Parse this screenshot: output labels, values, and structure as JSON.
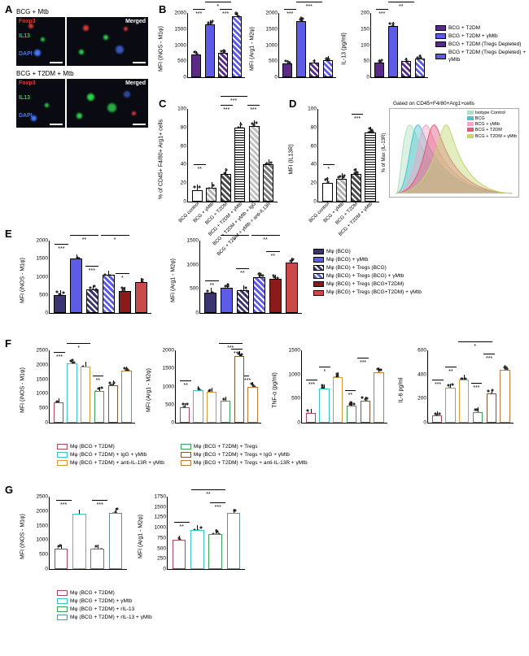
{
  "panelA": {
    "title1": "BCG + Mtb",
    "title2": "BCG + T2DM + Mtb",
    "labels": {
      "foxp3": "Foxp3",
      "il13": "IL13",
      "dapi": "DAPI",
      "merged": "Merged"
    },
    "colors": {
      "foxp3": "#d83a3a",
      "il13": "#2bd24a",
      "dapi": "#4876ff",
      "bg": "#0a0a12"
    }
  },
  "legendB": {
    "items": [
      {
        "label": "BCG + T2DM",
        "fill": "#5b2a86",
        "pattern": "none"
      },
      {
        "label": "BCG + T2DM + γMtb",
        "fill": "#5e5ce6",
        "pattern": "none"
      },
      {
        "label": "BCG + T2DM (Tregs Depleted)",
        "fill": "#5b2a86",
        "pattern": "hatch"
      },
      {
        "label": "BCG + T2DM (Tregs Depleted) + γMtb",
        "fill": "#5e5ce6",
        "pattern": "hatch"
      }
    ]
  },
  "chartB1": {
    "ylabel": "MFI (iNOS - M1φ)",
    "ymax": 2000,
    "ystep": 500,
    "bars": [
      {
        "v": 700,
        "fill": "#5b2a86",
        "hatch": false
      },
      {
        "v": 1650,
        "fill": "#5e5ce6",
        "hatch": false
      },
      {
        "v": 750,
        "fill": "#5b2a86",
        "hatch": true
      },
      {
        "v": 1900,
        "fill": "#5e5ce6",
        "hatch": true
      }
    ],
    "sig": [
      [
        "***",
        "***",
        "*"
      ]
    ]
  },
  "chartB2": {
    "ylabel": "MFI (Arg1 - M2φ)",
    "ymax": 2000,
    "ystep": 500,
    "bars": [
      {
        "v": 420,
        "fill": "#5b2a86",
        "hatch": false
      },
      {
        "v": 1750,
        "fill": "#5e5ce6",
        "hatch": false
      },
      {
        "v": 450,
        "fill": "#5b2a86",
        "hatch": true
      },
      {
        "v": 530,
        "fill": "#5e5ce6",
        "hatch": true
      }
    ]
  },
  "chartB3": {
    "ylabel": "IL-13 (pg/ml)",
    "ymax": 200,
    "ystep": 50,
    "bars": [
      {
        "v": 45,
        "fill": "#5b2a86",
        "hatch": false
      },
      {
        "v": 160,
        "fill": "#5e5ce6",
        "hatch": false
      },
      {
        "v": 50,
        "fill": "#5b2a86",
        "hatch": true
      },
      {
        "v": 58,
        "fill": "#5e5ce6",
        "hatch": true
      }
    ]
  },
  "chartC": {
    "ylabel": "% of CD45+ F4/80+\nArg1+ cells",
    "ymax": 100,
    "ystep": 20,
    "bars": [
      {
        "v": 12,
        "fill": "#ffffff",
        "hatch": false
      },
      {
        "v": 15,
        "fill": "#b0b0b0",
        "hatch": true
      },
      {
        "v": 30,
        "fill": "#4a4a4a",
        "hatch": true
      },
      {
        "v": 80,
        "fill": "#ffffff",
        "hatch": true,
        "hatchStyle": "horiz"
      },
      {
        "v": 82,
        "fill": "#c0c0c0",
        "hatch": true
      },
      {
        "v": 40,
        "fill": "#7a7a7a",
        "hatch": true
      }
    ],
    "xlabels": [
      "BCG control",
      "BCG + γMtb",
      "BCG + T2DM",
      "BCG + T2DM + γMtb",
      "BCG + T2DM + γMtb + IgG",
      "BCG + T2DM + γMtb + anti-IL13R"
    ]
  },
  "chartD": {
    "ylabel": "MFI (IL13R)",
    "ymax": 100,
    "ystep": 20,
    "bars": [
      {
        "v": 20,
        "fill": "#ffffff",
        "hatch": false
      },
      {
        "v": 25,
        "fill": "#b0b0b0",
        "hatch": true
      },
      {
        "v": 30,
        "fill": "#4a4a4a",
        "hatch": true
      },
      {
        "v": 75,
        "fill": "#ffffff",
        "hatch": true,
        "hatchStyle": "horiz"
      }
    ],
    "xlabels": [
      "BCG control",
      "BCG + γMtb",
      "BCG + T2DM",
      "BCG + T2DM + γMtb"
    ]
  },
  "histoD": {
    "gateTitle": "Gated on CD45+F4/80+Arg1+cells",
    "ylabel": "% of Max (IL-13R)",
    "legend": [
      "Isotype Control",
      "BCG",
      "BCG + γMtb",
      "BCG + T2DM",
      "BCG + T2DM + γMtb"
    ],
    "colors": [
      "#b0e0c4",
      "#4bc3d0",
      "#f5a3c7",
      "#e35a7a",
      "#c0d870"
    ]
  },
  "legendE": {
    "items": [
      {
        "label": "Mφ (BCG)",
        "fill": "#3a3470"
      },
      {
        "label": "Mφ (BCG) + γMtb",
        "fill": "#5e5ce6"
      },
      {
        "label": "Mφ (BCG) + Tregs (BCG)",
        "fill": "#3a3470",
        "hatch": true
      },
      {
        "label": "Mφ (BCG) + Tregs (BCG) + γMtb",
        "fill": "#5e5ce6",
        "hatch": true
      },
      {
        "label": "Mφ (BCG) + Tregs (BCG+T2DM)",
        "fill": "#8b1a1a"
      },
      {
        "label": "Mφ (BCG) + Tregs (BCG+T2DM) + γMtb",
        "fill": "#c94a4a"
      }
    ]
  },
  "chartE1": {
    "ylabel": "MFI (iNOS - M1φ)",
    "ymax": 2000,
    "ystep": 500,
    "bars": [
      {
        "v": 500,
        "fill": "#3a3470"
      },
      {
        "v": 1500,
        "fill": "#5e5ce6"
      },
      {
        "v": 650,
        "fill": "#3a3470",
        "hatch": true
      },
      {
        "v": 1050,
        "fill": "#5e5ce6",
        "hatch": true
      },
      {
        "v": 600,
        "fill": "#8b1a1a"
      },
      {
        "v": 850,
        "fill": "#c94a4a"
      }
    ]
  },
  "chartE2": {
    "ylabel": "MFI (Arg1 - M2φ)",
    "ymax": 1500,
    "ystep": 500,
    "bars": [
      {
        "v": 430,
        "fill": "#3a3470"
      },
      {
        "v": 520,
        "fill": "#5e5ce6"
      },
      {
        "v": 480,
        "fill": "#3a3470",
        "hatch": true
      },
      {
        "v": 750,
        "fill": "#5e5ce6",
        "hatch": true
      },
      {
        "v": 700,
        "fill": "#8b1a1a"
      },
      {
        "v": 1050,
        "fill": "#c94a4a"
      }
    ]
  },
  "legendF": {
    "left": [
      {
        "label": "Mφ (BCG + T2DM)",
        "stroke": "#a94a5a"
      },
      {
        "label": "Mφ (BCG + T2DM) + IgG + γMtb",
        "stroke": "#3cc4c4"
      },
      {
        "label": "Mφ (BCG + T2DM) + anti-IL-13R + γMtb",
        "stroke": "#d49a3a"
      }
    ],
    "right": [
      {
        "label": "Mφ (BCG + T2DM) + Tregs",
        "stroke": "#3aa05a"
      },
      {
        "label": "Mφ (BCG + T2DM) + Tregs + IgG + γMtb",
        "stroke": "#7a5a3a"
      },
      {
        "label": "Mφ (BCG + T2DM) + Tregs + anti-IL-13R + γMtb",
        "stroke": "#c07a3a"
      }
    ]
  },
  "chartF1": {
    "ylabel": "MFI (iNOS - M1φ)",
    "ymax": 2500,
    "ystep": 500,
    "bars": [
      {
        "v": 700,
        "stroke": "#a94a5a"
      },
      {
        "v": 2050,
        "stroke": "#3cc4c4"
      },
      {
        "v": 1950,
        "stroke": "#d49a3a"
      },
      {
        "v": 1100,
        "stroke": "#3aa05a"
      },
      {
        "v": 1300,
        "stroke": "#7a5a3a"
      },
      {
        "v": 1800,
        "stroke": "#c07a3a"
      }
    ]
  },
  "chartF2": {
    "ylabel": "MFI (Arg1 - M2φ)",
    "ymax": 2000,
    "ystep": 500,
    "bars": [
      {
        "v": 430,
        "stroke": "#a94a5a"
      },
      {
        "v": 900,
        "stroke": "#3cc4c4"
      },
      {
        "v": 850,
        "stroke": "#d49a3a"
      },
      {
        "v": 600,
        "stroke": "#3aa05a"
      },
      {
        "v": 1850,
        "stroke": "#7a5a3a"
      },
      {
        "v": 1000,
        "stroke": "#c07a3a"
      }
    ]
  },
  "chartF3": {
    "ylabel": "TNF-α (pg/ml)",
    "ymax": 1500,
    "ystep": 500,
    "bars": [
      {
        "v": 200,
        "stroke": "#a94a5a"
      },
      {
        "v": 700,
        "stroke": "#3cc4c4"
      },
      {
        "v": 950,
        "stroke": "#d49a3a"
      },
      {
        "v": 350,
        "stroke": "#3aa05a"
      },
      {
        "v": 450,
        "stroke": "#7a5a3a"
      },
      {
        "v": 1050,
        "stroke": "#c07a3a"
      }
    ]
  },
  "chartF4": {
    "ylabel": "IL-6 pg/ml",
    "ymax": 600,
    "ystep": 200,
    "bars": [
      {
        "v": 60,
        "stroke": "#a94a5a"
      },
      {
        "v": 290,
        "stroke": "#3cc4c4"
      },
      {
        "v": 360,
        "stroke": "#d49a3a"
      },
      {
        "v": 90,
        "stroke": "#3aa05a"
      },
      {
        "v": 240,
        "stroke": "#7a5a3a"
      },
      {
        "v": 440,
        "stroke": "#c07a3a"
      }
    ]
  },
  "legendG": {
    "items": [
      {
        "label": "Mφ (BCG + T2DM)",
        "stroke": "#a94a5a"
      },
      {
        "label": "Mφ (BCG + T2DM) + γMtb",
        "stroke": "#3cc4c4"
      },
      {
        "label": "Mφ (BCG + T2DM) + rIL-13",
        "stroke": "#3aa05a"
      },
      {
        "label": "Mφ (BCG + T2DM) + rIL-13 + γMtb",
        "stroke": "#6a8aa0"
      }
    ]
  },
  "chartG1": {
    "ylabel": "MFI (iNOS - M1φ)",
    "ymax": 2500,
    "ystep": 500,
    "bars": [
      {
        "v": 700,
        "stroke": "#a94a5a"
      },
      {
        "v": 1900,
        "stroke": "#3cc4c4"
      },
      {
        "v": 700,
        "stroke": "#3aa05a"
      },
      {
        "v": 1950,
        "stroke": "#6a8aa0"
      }
    ]
  },
  "chartG2": {
    "ylabel": "MFI (Arg1 - M2φ)",
    "ymax": 1750,
    "ystep": 250,
    "bars": [
      {
        "v": 700,
        "stroke": "#a94a5a"
      },
      {
        "v": 950,
        "stroke": "#3cc4c4"
      },
      {
        "v": 850,
        "stroke": "#3aa05a"
      },
      {
        "v": 1350,
        "stroke": "#6a8aa0"
      }
    ]
  },
  "sigs": {
    "s1": "*",
    "s2": "**",
    "s3": "***"
  }
}
